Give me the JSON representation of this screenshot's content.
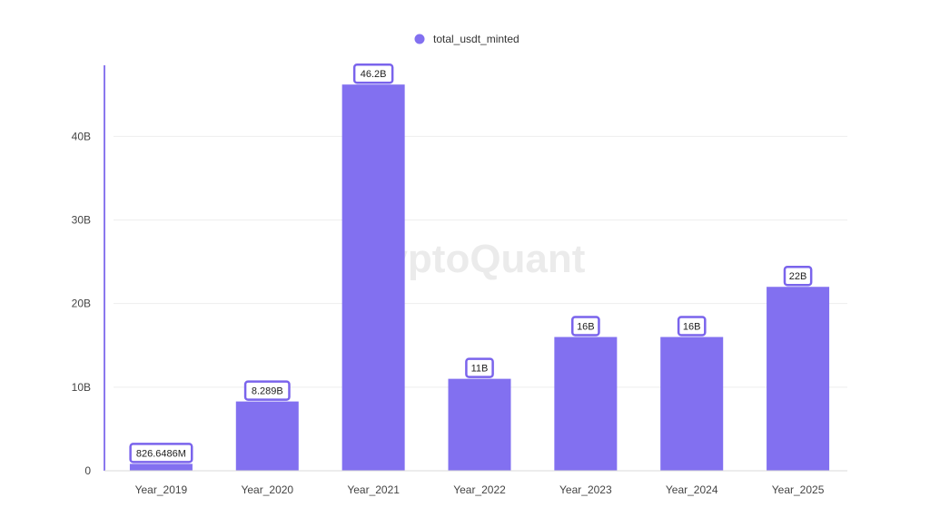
{
  "chart_data": {
    "type": "bar",
    "title": "",
    "xlabel": "",
    "ylabel": "",
    "categories": [
      "Year_2019",
      "Year_2020",
      "Year_2021",
      "Year_2022",
      "Year_2023",
      "Year_2024",
      "Year_2025"
    ],
    "series": [
      {
        "name": "total_usdt_minted",
        "values": [
          826648600,
          8289000000,
          46200000000,
          11000000000,
          16000000000,
          16000000000,
          22000000000
        ],
        "data_labels": [
          "826.6486M",
          "8.289B",
          "46.2B",
          "11B",
          "16B",
          "16B",
          "22B"
        ]
      }
    ],
    "yticks": [
      {
        "value": 0,
        "label": "0"
      },
      {
        "value": 10000000000,
        "label": "10B"
      },
      {
        "value": 20000000000,
        "label": "20B"
      },
      {
        "value": 30000000000,
        "label": "30B"
      },
      {
        "value": 40000000000,
        "label": "40B"
      }
    ],
    "ylim": [
      0,
      48500000000
    ],
    "grid": true,
    "legend_position": "top-center",
    "colors": {
      "bar": "#8270f0",
      "label_border": "#7a64ec",
      "axis_line": "#8a78ee",
      "grid": "#eeeeee",
      "text": "#444444",
      "watermark": "#ebebeb"
    },
    "watermark": "CryptoQuant"
  }
}
